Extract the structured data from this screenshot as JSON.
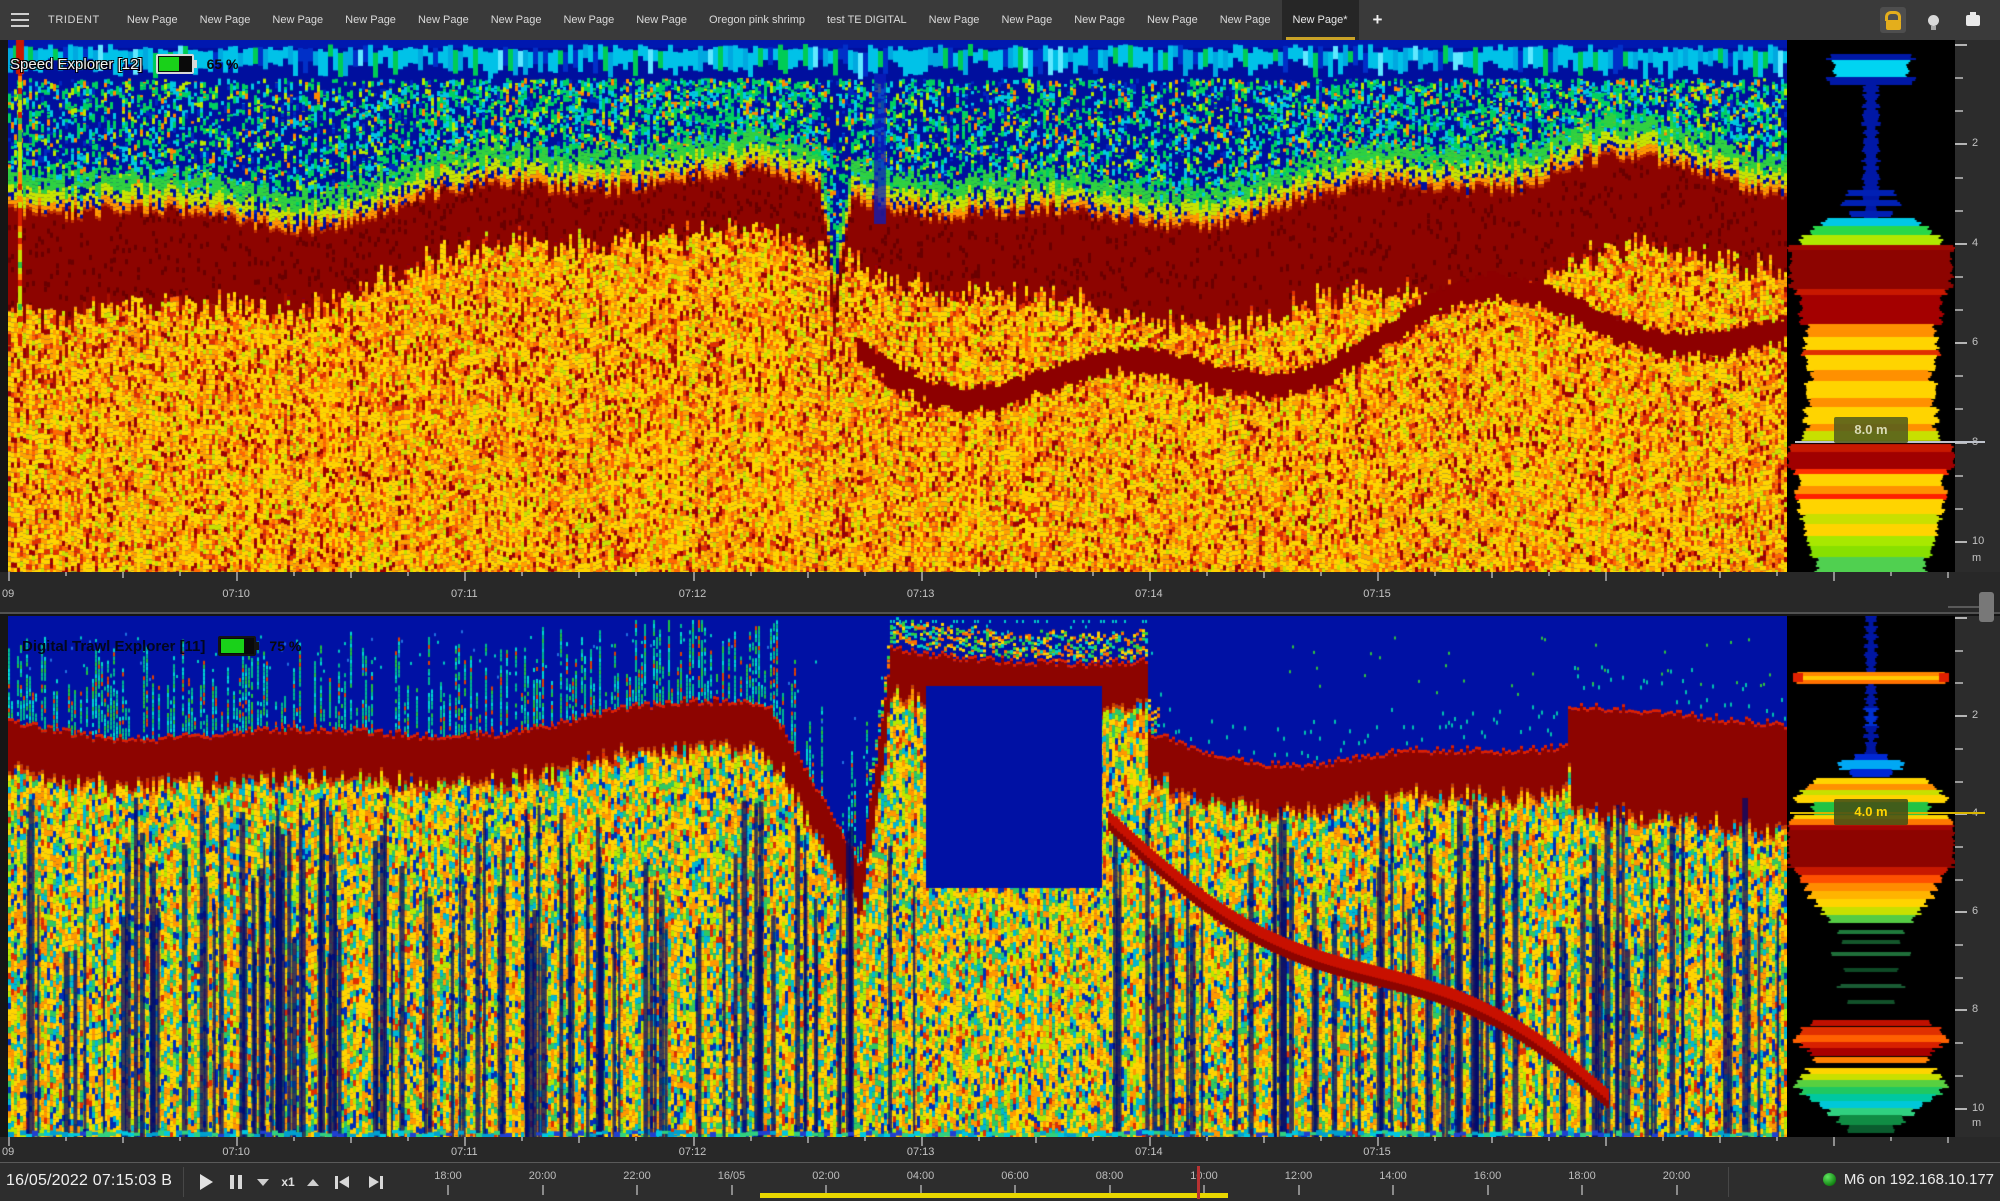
{
  "app": {
    "brand": "TRIDENT",
    "tabs": [
      "New Page",
      "New Page",
      "New Page",
      "New Page",
      "New Page",
      "New Page",
      "New Page",
      "New Page",
      "Oregon pink shrimp",
      "test TE DIGITAL",
      "New Page",
      "New Page",
      "New Page",
      "New Page",
      "New Page",
      "New Page*"
    ],
    "active_tab_index": 15,
    "add_tab_label": "+",
    "accent_color": "#c9a227",
    "right_icons": [
      "lock-icon",
      "bulb-icon",
      "screen-icon"
    ]
  },
  "speed_panel": {
    "title": "Speed Explorer [12]",
    "battery_percent": 65,
    "battery_text": "65 %",
    "marker_label": "8.0 m",
    "marker_depth_m": 8,
    "depth_tick_labels": [
      "2",
      "4",
      "6",
      "8",
      "10"
    ],
    "depth_unit": "m",
    "time_labels": [
      "09",
      "07:10",
      "07:11",
      "07:12",
      "07:13",
      "07:14",
      "07:15"
    ]
  },
  "trawl_panel": {
    "title": "Digital Trawl Explorer [11]",
    "battery_percent": 75,
    "battery_text": "75 %",
    "marker_label": "4.0 m",
    "marker_depth_m": 4,
    "depth_tick_labels": [
      "2",
      "4",
      "6",
      "8",
      "10"
    ],
    "depth_unit": "m",
    "time_labels": [
      "09",
      "07:10",
      "07:11",
      "07:12",
      "07:13",
      "07:14",
      "07:15"
    ]
  },
  "transport": {
    "datetime": "16/05/2022 07:15:03 B",
    "speed_label": "x1",
    "buttons": [
      "play",
      "pause",
      "slower",
      "speed",
      "faster",
      "skip-start",
      "skip-end"
    ]
  },
  "history": {
    "labels": [
      "18:00",
      "20:00",
      "22:00",
      "16/05",
      "02:00",
      "04:00",
      "06:00",
      "08:00",
      "10:00",
      "12:00",
      "14:00",
      "16:00",
      "18:00",
      "20:00"
    ],
    "selection_color": "#e8d600",
    "playhead_color": "#b83232"
  },
  "status": {
    "text": "M6 on 192.168.10.177",
    "led_color": "#26b226"
  },
  "echogram_palette": {
    "background_blue": "#000f9e",
    "strong_echo": "#8d0400",
    "medium_echo": "#ff9800",
    "weak_echo": "#ffd400",
    "plankton": "#00d060",
    "surface": "#00c2e8"
  }
}
